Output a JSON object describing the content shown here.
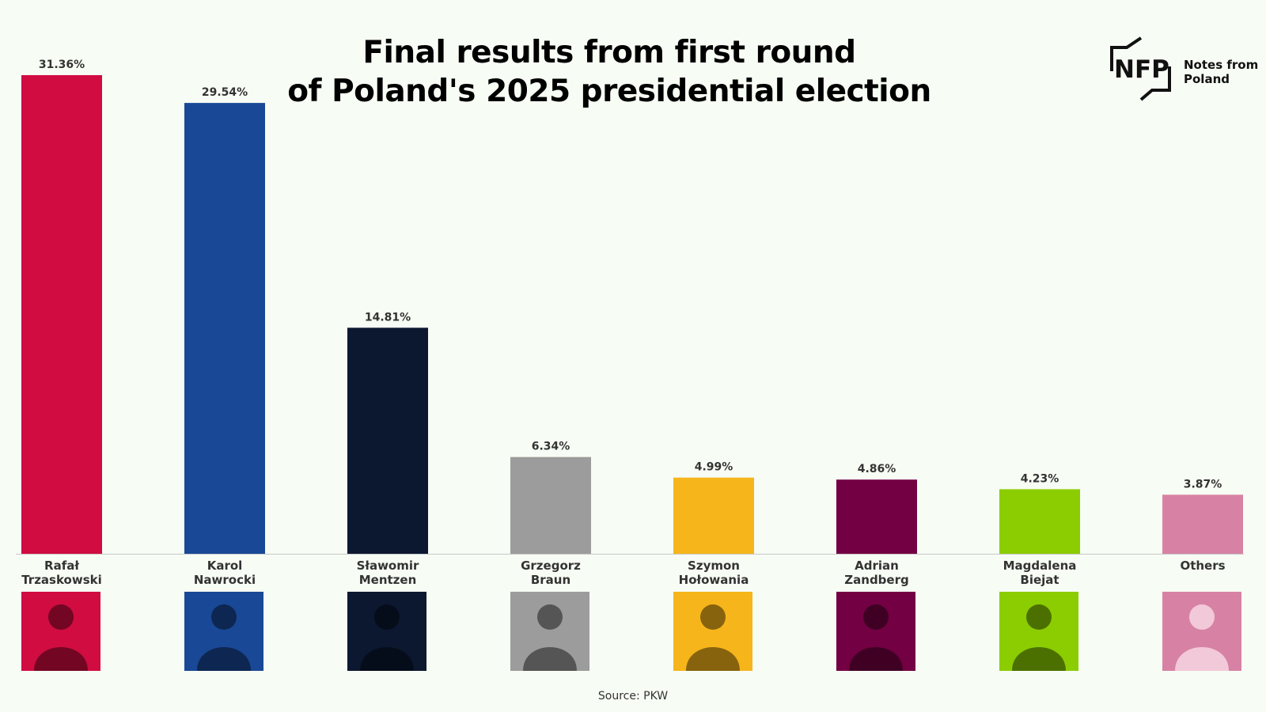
{
  "header": {
    "title_line1": "Final results from first round",
    "title_line2": "of Poland's 2025 presidential election"
  },
  "logo": {
    "mark": "NFP",
    "name_line1": "Notes from",
    "name_line2": "Poland"
  },
  "footer": {
    "source": "Source: PKW"
  },
  "chart_data": {
    "type": "bar",
    "title": "Final results from first round of Poland's 2025 presidential election",
    "categories": [
      [
        "Rafał",
        "Trzaskowski"
      ],
      [
        "Karol",
        "Nawrocki"
      ],
      [
        "Sławomir",
        "Mentzen"
      ],
      [
        "Grzegorz",
        "Braun"
      ],
      [
        "Szymon",
        "Hołowania"
      ],
      [
        "Adrian",
        "Zandberg"
      ],
      [
        "Magdalena",
        "Biejat"
      ],
      [
        "Others"
      ]
    ],
    "values": [
      31.36,
      29.54,
      14.81,
      6.34,
      4.99,
      4.86,
      4.23,
      3.87
    ],
    "value_labels": [
      "31.36%",
      "29.54%",
      "14.81%",
      "6.34%",
      "4.99%",
      "4.86%",
      "4.23%",
      "3.87%"
    ],
    "colors": [
      "#d00c41",
      "#194896",
      "#0c1830",
      "#9c9c9c",
      "#f6b51a",
      "#730043",
      "#8bcd00",
      "#d782a4"
    ],
    "ylim": [
      0,
      31.36
    ],
    "grid": false,
    "legend": "none"
  }
}
